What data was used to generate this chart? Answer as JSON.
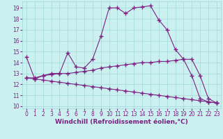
{
  "line1_x": [
    0,
    1,
    2,
    3,
    4,
    5,
    6,
    7,
    8,
    9,
    10,
    11,
    12,
    13,
    14,
    15,
    16,
    17,
    18,
    19,
    20,
    21,
    22,
    23
  ],
  "line1_y": [
    14.5,
    12.5,
    12.8,
    13.0,
    13.0,
    14.9,
    13.6,
    13.5,
    14.3,
    16.4,
    19.0,
    19.0,
    18.5,
    19.0,
    19.1,
    19.2,
    17.9,
    17.0,
    15.2,
    14.3,
    12.8,
    10.7,
    10.4,
    10.3
  ],
  "line2_x": [
    0,
    1,
    2,
    3,
    4,
    5,
    6,
    7,
    8,
    9,
    10,
    11,
    12,
    13,
    14,
    15,
    16,
    17,
    18,
    19,
    20,
    21,
    22,
    23
  ],
  "line2_y": [
    12.6,
    12.6,
    12.8,
    12.9,
    13.0,
    13.0,
    13.1,
    13.2,
    13.3,
    13.5,
    13.6,
    13.7,
    13.8,
    13.9,
    14.0,
    14.0,
    14.1,
    14.1,
    14.2,
    14.3,
    14.3,
    12.8,
    10.7,
    10.3
  ],
  "line3_x": [
    0,
    1,
    2,
    3,
    4,
    5,
    6,
    7,
    8,
    9,
    10,
    11,
    12,
    13,
    14,
    15,
    16,
    17,
    18,
    19,
    20,
    21,
    22,
    23
  ],
  "line3_y": [
    12.6,
    12.5,
    12.4,
    12.3,
    12.2,
    12.1,
    12.0,
    11.9,
    11.8,
    11.7,
    11.6,
    11.5,
    11.4,
    11.3,
    11.2,
    11.1,
    11.0,
    10.9,
    10.8,
    10.7,
    10.6,
    10.5,
    10.4,
    10.3
  ],
  "line_color": "#7B2182",
  "marker": "+",
  "marker_size": 4,
  "linewidth": 0.8,
  "background_color": "#CBF0F0",
  "grid_color": "#A0D8D8",
  "xlabel": "Windchill (Refroidissement éolien,°C)",
  "xlabel_fontsize": 6.5,
  "ylabel_ticks": [
    10,
    11,
    12,
    13,
    14,
    15,
    16,
    17,
    18,
    19
  ],
  "xlim": [
    -0.5,
    23.5
  ],
  "ylim": [
    9.8,
    19.6
  ],
  "xtick_labels": [
    "0",
    "1",
    "2",
    "3",
    "4",
    "5",
    "6",
    "7",
    "8",
    "9",
    "10",
    "11",
    "12",
    "13",
    "14",
    "15",
    "16",
    "17",
    "18",
    "19",
    "20",
    "21",
    "22",
    "23"
  ],
  "tick_fontsize": 5.5
}
